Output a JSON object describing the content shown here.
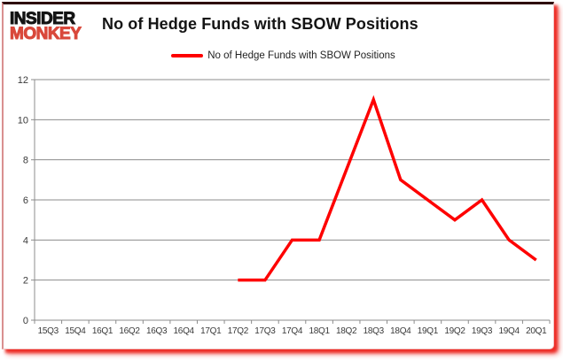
{
  "header": {
    "logo_line1": "INSIDER",
    "logo_line2": "MONKEY",
    "title": "No of Hedge Funds with SBOW Positions"
  },
  "legend": {
    "label": "No of Hedge Funds with SBOW Positions"
  },
  "colors": {
    "series_line": "#FE0000",
    "logo_black": "#141414",
    "logo_red": "#D9483B",
    "gridline": "#8C8C8C",
    "axis_text": "#3A3A3A",
    "border_shadow_red": "#EB1912"
  },
  "chart_data": {
    "type": "line",
    "title": "No of Hedge Funds with SBOW Positions",
    "series_name": "No of Hedge Funds with SBOW Positions",
    "categories": [
      "15Q3",
      "15Q4",
      "16Q1",
      "16Q2",
      "16Q3",
      "16Q4",
      "17Q1",
      "17Q2",
      "17Q3",
      "17Q4",
      "18Q1",
      "18Q2",
      "18Q3",
      "18Q4",
      "19Q1",
      "19Q2",
      "19Q3",
      "19Q4",
      "20Q1"
    ],
    "values": [
      null,
      null,
      null,
      null,
      null,
      null,
      null,
      2,
      2,
      4,
      4,
      7.5,
      11,
      7,
      6,
      5,
      6,
      4,
      3
    ],
    "ylim": [
      0,
      12
    ],
    "ytick_step": 2,
    "grid": true,
    "legend_position": "top",
    "line_color": "#FE0000"
  }
}
